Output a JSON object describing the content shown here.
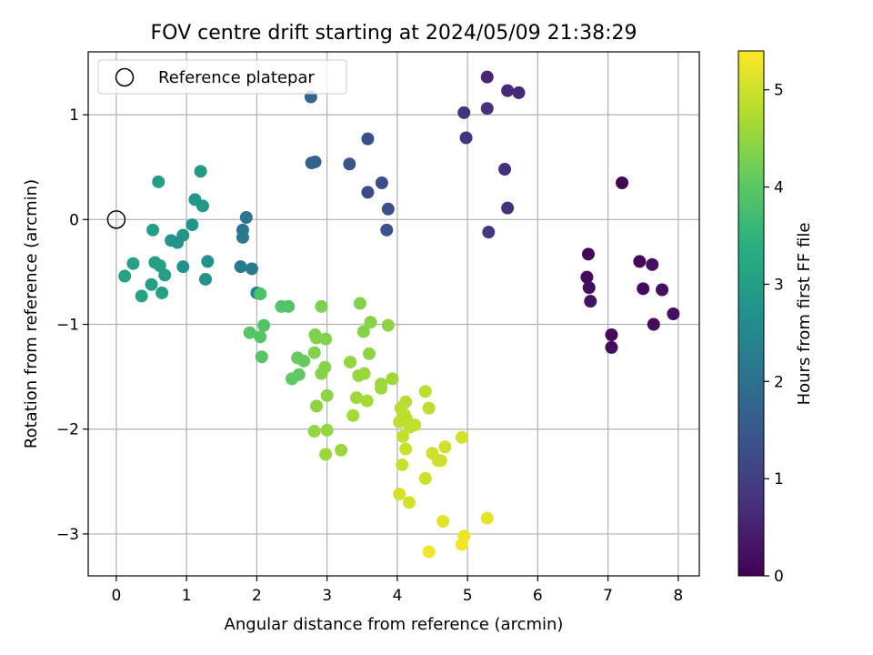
{
  "chart_data": {
    "type": "scatter",
    "title": "FOV centre drift starting at 2024/05/09 21:38:29",
    "xlabel": "Angular distance from reference (arcmin)",
    "ylabel": "Rotation from reference (arcmin)",
    "xlim": [
      -0.4,
      8.3
    ],
    "ylim": [
      -3.4,
      1.6
    ],
    "x_ticks": [
      0,
      1,
      2,
      3,
      4,
      5,
      6,
      7,
      8
    ],
    "y_ticks": [
      -3,
      -2,
      -1,
      0,
      1
    ],
    "grid": true,
    "legend": {
      "placement": "top-left",
      "entries": [
        "Reference platepar"
      ]
    },
    "reference_point": {
      "x": 0,
      "y": 0
    },
    "colorbar": {
      "label": "Hours from first FF file",
      "colormap": "viridis",
      "range": [
        0,
        5.4
      ],
      "ticks": [
        0,
        1,
        2,
        3,
        4,
        5
      ]
    },
    "points": [
      {
        "x": 7.2,
        "y": 0.35,
        "c": 0.05
      },
      {
        "x": 6.72,
        "y": -0.33,
        "c": 0.1
      },
      {
        "x": 6.7,
        "y": -0.55,
        "c": 0.15
      },
      {
        "x": 6.73,
        "y": -0.65,
        "c": 0.2
      },
      {
        "x": 6.75,
        "y": -0.78,
        "c": 0.25
      },
      {
        "x": 7.05,
        "y": -1.1,
        "c": 0.1
      },
      {
        "x": 7.05,
        "y": -1.22,
        "c": 0.15
      },
      {
        "x": 7.45,
        "y": -0.4,
        "c": 0.1
      },
      {
        "x": 7.5,
        "y": -0.66,
        "c": 0.15
      },
      {
        "x": 7.63,
        "y": -0.43,
        "c": 0.2
      },
      {
        "x": 7.77,
        "y": -0.67,
        "c": 0.2
      },
      {
        "x": 7.65,
        "y": -1.0,
        "c": 0.15
      },
      {
        "x": 7.93,
        "y": -0.9,
        "c": 0.2
      },
      {
        "x": 5.28,
        "y": 1.36,
        "c": 0.55
      },
      {
        "x": 5.57,
        "y": 1.23,
        "c": 0.6
      },
      {
        "x": 5.73,
        "y": 1.21,
        "c": 0.6
      },
      {
        "x": 4.95,
        "y": 1.02,
        "c": 0.75
      },
      {
        "x": 5.28,
        "y": 1.06,
        "c": 0.75
      },
      {
        "x": 4.98,
        "y": 0.78,
        "c": 0.8
      },
      {
        "x": 5.53,
        "y": 0.48,
        "c": 0.7
      },
      {
        "x": 5.57,
        "y": 0.11,
        "c": 0.75
      },
      {
        "x": 5.3,
        "y": -0.12,
        "c": 0.85
      },
      {
        "x": 3.58,
        "y": 0.77,
        "c": 1.3
      },
      {
        "x": 3.32,
        "y": 0.53,
        "c": 1.4
      },
      {
        "x": 3.78,
        "y": 0.35,
        "c": 1.25
      },
      {
        "x": 3.58,
        "y": 0.26,
        "c": 1.2
      },
      {
        "x": 3.87,
        "y": 0.1,
        "c": 1.3
      },
      {
        "x": 3.85,
        "y": -0.1,
        "c": 1.35
      },
      {
        "x": 2.77,
        "y": 1.17,
        "c": 1.75
      },
      {
        "x": 2.78,
        "y": 0.54,
        "c": 1.7
      },
      {
        "x": 2.83,
        "y": 0.55,
        "c": 1.7
      },
      {
        "x": 1.85,
        "y": 0.02,
        "c": 2.05
      },
      {
        "x": 1.8,
        "y": -0.1,
        "c": 2.1
      },
      {
        "x": 1.8,
        "y": -0.17,
        "c": 2.15
      },
      {
        "x": 1.77,
        "y": -0.45,
        "c": 2.2
      },
      {
        "x": 1.93,
        "y": -0.47,
        "c": 2.25
      },
      {
        "x": 2.0,
        "y": -0.7,
        "c": 2.35
      },
      {
        "x": 0.6,
        "y": 0.36,
        "c": 3.0
      },
      {
        "x": 1.2,
        "y": 0.46,
        "c": 2.9
      },
      {
        "x": 1.12,
        "y": 0.19,
        "c": 2.85
      },
      {
        "x": 1.23,
        "y": 0.13,
        "c": 2.85
      },
      {
        "x": 1.08,
        "y": -0.05,
        "c": 2.8
      },
      {
        "x": 0.95,
        "y": -0.15,
        "c": 2.8
      },
      {
        "x": 0.87,
        "y": -0.22,
        "c": 2.8
      },
      {
        "x": 0.78,
        "y": -0.2,
        "c": 2.8
      },
      {
        "x": 0.95,
        "y": -0.45,
        "c": 2.75
      },
      {
        "x": 1.3,
        "y": -0.4,
        "c": 2.75
      },
      {
        "x": 1.27,
        "y": -0.57,
        "c": 2.75
      },
      {
        "x": 0.52,
        "y": -0.1,
        "c": 3.0
      },
      {
        "x": 0.55,
        "y": -0.41,
        "c": 3.05
      },
      {
        "x": 0.62,
        "y": -0.44,
        "c": 3.05
      },
      {
        "x": 0.69,
        "y": -0.53,
        "c": 3.05
      },
      {
        "x": 0.24,
        "y": -0.42,
        "c": 3.1
      },
      {
        "x": 0.12,
        "y": -0.54,
        "c": 3.1
      },
      {
        "x": 0.5,
        "y": -0.62,
        "c": 3.05
      },
      {
        "x": 0.65,
        "y": -0.7,
        "c": 3.05
      },
      {
        "x": 0.36,
        "y": -0.73,
        "c": 3.1
      },
      {
        "x": 2.05,
        "y": -0.71,
        "c": 3.85
      },
      {
        "x": 2.35,
        "y": -0.83,
        "c": 3.9
      },
      {
        "x": 2.45,
        "y": -0.83,
        "c": 3.9
      },
      {
        "x": 2.1,
        "y": -1.01,
        "c": 3.9
      },
      {
        "x": 1.9,
        "y": -1.08,
        "c": 3.95
      },
      {
        "x": 2.05,
        "y": -1.12,
        "c": 3.95
      },
      {
        "x": 2.07,
        "y": -1.31,
        "c": 3.95
      },
      {
        "x": 2.5,
        "y": -1.52,
        "c": 4.05
      },
      {
        "x": 2.6,
        "y": -1.48,
        "c": 4.05
      },
      {
        "x": 2.58,
        "y": -1.32,
        "c": 4.1
      },
      {
        "x": 2.67,
        "y": -1.35,
        "c": 4.1
      },
      {
        "x": 2.92,
        "y": -0.83,
        "c": 4.3
      },
      {
        "x": 2.83,
        "y": -1.1,
        "c": 4.3
      },
      {
        "x": 2.85,
        "y": -1.13,
        "c": 4.35
      },
      {
        "x": 2.98,
        "y": -1.14,
        "c": 4.35
      },
      {
        "x": 2.82,
        "y": -1.27,
        "c": 4.35
      },
      {
        "x": 2.97,
        "y": -1.41,
        "c": 4.4
      },
      {
        "x": 2.92,
        "y": -1.47,
        "c": 4.4
      },
      {
        "x": 3.0,
        "y": -1.68,
        "c": 4.45
      },
      {
        "x": 2.85,
        "y": -1.78,
        "c": 4.45
      },
      {
        "x": 2.82,
        "y": -2.02,
        "c": 4.5
      },
      {
        "x": 3.0,
        "y": -2.01,
        "c": 4.5
      },
      {
        "x": 2.98,
        "y": -2.24,
        "c": 4.55
      },
      {
        "x": 3.2,
        "y": -2.2,
        "c": 4.55
      },
      {
        "x": 3.47,
        "y": -0.8,
        "c": 4.35
      },
      {
        "x": 3.62,
        "y": -0.98,
        "c": 4.4
      },
      {
        "x": 3.52,
        "y": -1.07,
        "c": 4.4
      },
      {
        "x": 3.87,
        "y": -1.01,
        "c": 4.45
      },
      {
        "x": 3.6,
        "y": -1.28,
        "c": 4.45
      },
      {
        "x": 3.33,
        "y": -1.36,
        "c": 4.5
      },
      {
        "x": 3.45,
        "y": -1.49,
        "c": 4.5
      },
      {
        "x": 3.53,
        "y": -1.47,
        "c": 4.55
      },
      {
        "x": 3.77,
        "y": -1.57,
        "c": 4.55
      },
      {
        "x": 3.77,
        "y": -1.61,
        "c": 4.6
      },
      {
        "x": 3.93,
        "y": -1.52,
        "c": 4.6
      },
      {
        "x": 3.42,
        "y": -1.7,
        "c": 4.6
      },
      {
        "x": 3.57,
        "y": -1.73,
        "c": 4.65
      },
      {
        "x": 3.37,
        "y": -1.87,
        "c": 4.65
      },
      {
        "x": 4.12,
        "y": -1.74,
        "c": 4.8
      },
      {
        "x": 4.05,
        "y": -1.8,
        "c": 4.8
      },
      {
        "x": 4.1,
        "y": -1.86,
        "c": 4.85
      },
      {
        "x": 4.13,
        "y": -1.9,
        "c": 4.85
      },
      {
        "x": 4.03,
        "y": -1.93,
        "c": 4.85
      },
      {
        "x": 4.18,
        "y": -1.98,
        "c": 4.9
      },
      {
        "x": 4.25,
        "y": -1.96,
        "c": 4.9
      },
      {
        "x": 4.08,
        "y": -2.07,
        "c": 4.9
      },
      {
        "x": 4.12,
        "y": -2.19,
        "c": 4.95
      },
      {
        "x": 4.07,
        "y": -2.34,
        "c": 4.95
      },
      {
        "x": 4.4,
        "y": -1.64,
        "c": 4.85
      },
      {
        "x": 4.45,
        "y": -1.8,
        "c": 4.85
      },
      {
        "x": 4.5,
        "y": -2.23,
        "c": 5.0
      },
      {
        "x": 4.58,
        "y": -2.3,
        "c": 5.0
      },
      {
        "x": 4.62,
        "y": -2.3,
        "c": 5.0
      },
      {
        "x": 4.68,
        "y": -2.17,
        "c": 5.0
      },
      {
        "x": 4.92,
        "y": -2.08,
        "c": 5.05
      },
      {
        "x": 4.4,
        "y": -2.47,
        "c": 5.0
      },
      {
        "x": 4.03,
        "y": -2.62,
        "c": 5.05
      },
      {
        "x": 4.17,
        "y": -2.7,
        "c": 5.05
      },
      {
        "x": 4.65,
        "y": -2.88,
        "c": 5.15
      },
      {
        "x": 5.28,
        "y": -2.85,
        "c": 5.2
      },
      {
        "x": 4.95,
        "y": -3.02,
        "c": 5.25
      },
      {
        "x": 4.92,
        "y": -3.1,
        "c": 5.3
      },
      {
        "x": 4.45,
        "y": -3.17,
        "c": 5.3
      }
    ]
  }
}
